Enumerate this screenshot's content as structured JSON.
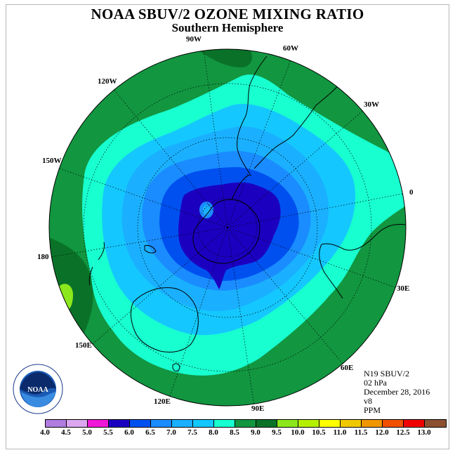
{
  "title": "NOAA SBUV/2 OZONE MIXING RATIO",
  "subtitle": "Southern Hemisphere",
  "longitude_labels": {
    "lon_90w": "90W",
    "lon_60w": "60W",
    "lon_120w": "120W",
    "lon_30w": "30W",
    "lon_150w": "150W",
    "lon_0": "0",
    "lon_180": "180",
    "lon_30e": "30E",
    "lon_150e": "150E",
    "lon_60e": "60E",
    "lon_120e": "120E",
    "lon_90e": "90E"
  },
  "info": {
    "satellite": "N19 SBUV/2",
    "level": "02 hPa",
    "date": "December 28, 2016",
    "version": "v8",
    "units": "PPM"
  },
  "logo_text": "NOAA",
  "colorbar": {
    "labels": [
      "4.0",
      "4.5",
      "5.0",
      "5.5",
      "6.0",
      "6.5",
      "7.0",
      "7.5",
      "8.0",
      "8.5",
      "9.0",
      "9.5",
      "10.0",
      "10.5",
      "11.0",
      "11.5",
      "12.0",
      "12.5",
      "13.0"
    ],
    "colors": [
      "#b07ce0",
      "#dca6f0",
      "#f018d8",
      "#1c00c0",
      "#0050f0",
      "#1a8cff",
      "#1ab0ff",
      "#14c8ff",
      "#18ffd0",
      "#129640",
      "#0a7228",
      "#8ce81c",
      "#b4f000",
      "#ffff00",
      "#f0c800",
      "#f09600",
      "#f05000",
      "#f00000",
      "#8c5030"
    ]
  },
  "colors": {
    "max_band": "#0a7228",
    "band_8_5": "#129640",
    "band_8_0": "#18ffd0",
    "band_7_5": "#14c8ff",
    "band_7_0": "#1ab0ff",
    "band_6_5": "#1a8cff",
    "band_6_0": "#0050f0",
    "band_5_5": "#1c00c0",
    "peak_9_5": "#8ce81c"
  }
}
